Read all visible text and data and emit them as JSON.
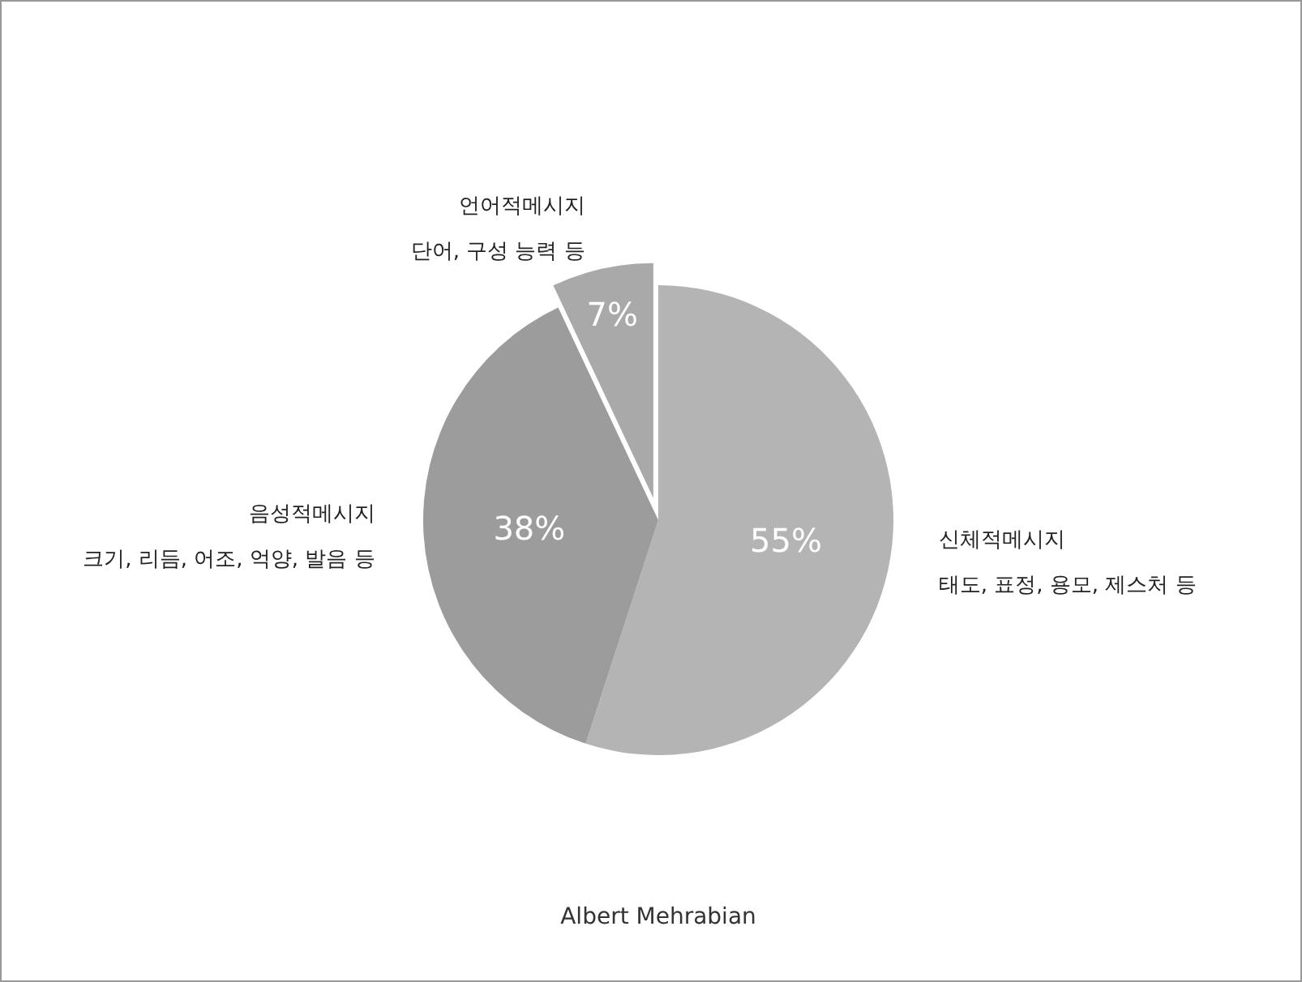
{
  "chart_data": {
    "type": "pie",
    "categories": [
      "신체적메시지\n태도, 표정, 용모, 제스처 등",
      "음성적메시지\n크기, 리듬, 어조, 억양, 발음 등",
      "언어적메시지\n단어, 구성 능력 등"
    ],
    "values": [
      55,
      38,
      7
    ],
    "colors": [
      "#b4b4b4",
      "#9c9c9c",
      "#a9a9a9"
    ],
    "value_labels": [
      "55%",
      "38%",
      "7%"
    ],
    "annotations": [
      "Albert Mehrabian"
    ]
  }
}
